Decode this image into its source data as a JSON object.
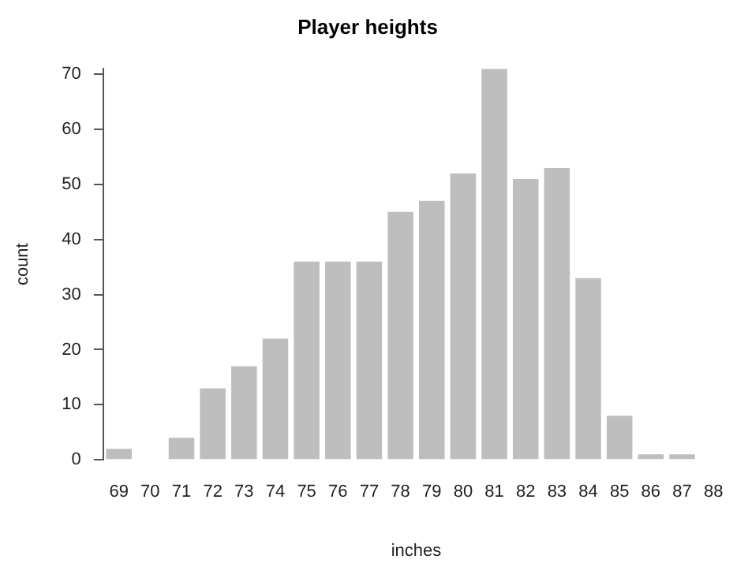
{
  "chart_data": {
    "type": "bar",
    "title": "Player heights",
    "xlabel": "inches",
    "ylabel": "count",
    "categories": [
      "69",
      "70",
      "71",
      "72",
      "73",
      "74",
      "75",
      "76",
      "77",
      "78",
      "79",
      "80",
      "81",
      "82",
      "83",
      "84",
      "85",
      "86",
      "87",
      "88"
    ],
    "values": [
      2,
      0,
      4,
      13,
      17,
      22,
      36,
      36,
      36,
      45,
      47,
      52,
      71,
      51,
      53,
      33,
      8,
      1,
      1,
      0
    ],
    "color": "#bebebe",
    "ylim": [
      0,
      71
    ],
    "yticks": [
      0,
      10,
      20,
      30,
      40,
      50,
      60,
      70
    ],
    "grid": false,
    "legend": false
  }
}
